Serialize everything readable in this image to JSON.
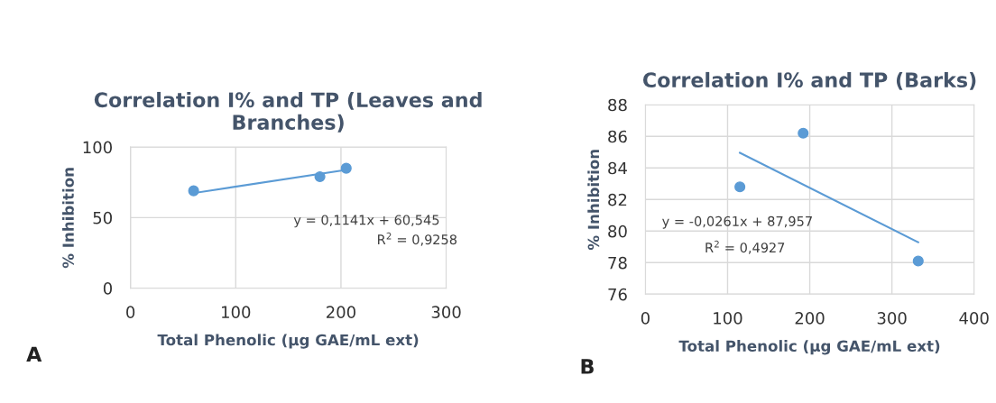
{
  "chart_data": [
    {
      "type": "scatter",
      "title": "Correlation I% and TP (Leaves and Branches)",
      "xlabel": "Total Phenolic (µg GAE/mL ext)",
      "ylabel": "% Inhibition",
      "xlim": [
        0,
        300
      ],
      "xticks": [
        0,
        100,
        200,
        300
      ],
      "ylim": [
        0,
        100
      ],
      "yticks": [
        0,
        50,
        100
      ],
      "grid": true,
      "series": [
        {
          "color": "#5b9bd5",
          "marker": "circle",
          "x": [
            60,
            180,
            205
          ],
          "values": [
            69,
            79,
            85
          ]
        },
        {
          "type": "line",
          "marker": "none",
          "color": "#5b9bd5",
          "x": [
            60,
            205
          ],
          "values": [
            67.4,
            83.9
          ]
        }
      ],
      "annotations": [
        "y = 0,1141x + 60,545",
        "R$^{2}$ = 0,9258",
        "A"
      ]
    },
    {
      "type": "scatter",
      "title": "Correlation I% and TP (Barks)",
      "xlabel": "Total Phenolic (µg GAE/mL ext)",
      "ylabel": "% Inhibition",
      "xlim": [
        0,
        400
      ],
      "xticks": [
        0,
        100,
        200,
        300,
        400
      ],
      "ylim": [
        76,
        88
      ],
      "yticks": [
        76,
        78,
        80,
        82,
        84,
        86,
        88
      ],
      "grid": true,
      "series": [
        {
          "color": "#5b9bd5",
          "marker": "circle",
          "x": [
            115,
            192,
            332
          ],
          "values": [
            82.8,
            86.2,
            78.1
          ]
        },
        {
          "type": "line",
          "marker": "none",
          "color": "#5b9bd5",
          "x": [
            115,
            332
          ],
          "values": [
            84.96,
            79.29
          ]
        }
      ],
      "annotations": [
        "y = -0,0261x + 87,957",
        "R$^{2}$ = 0,4927",
        "B"
      ]
    }
  ]
}
